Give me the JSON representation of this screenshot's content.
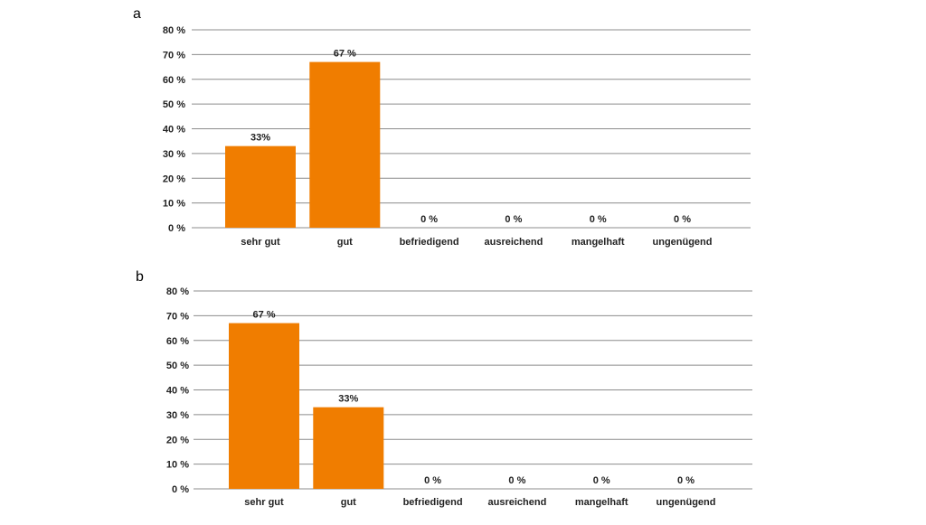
{
  "colors": {
    "bar": "#f07d00",
    "grid": "#8c8c8c",
    "text": "#222222"
  },
  "chart_data": [
    {
      "type": "bar",
      "panel": "a",
      "categories": [
        "sehr gut",
        "gut",
        "befriedigend",
        "ausreichend",
        "mangelhaft",
        "ungenügend"
      ],
      "values": [
        33,
        67,
        0,
        0,
        0,
        0
      ],
      "data_labels": [
        "33%",
        "67 %",
        "0 %",
        "0 %",
        "0 %",
        "0 %"
      ],
      "ylim": [
        0,
        80
      ],
      "yticks": [
        "0 %",
        "10 %",
        "20 %",
        "30 %",
        "40 %",
        "50 %",
        "60 %",
        "70 %",
        "80 %"
      ],
      "grid": true,
      "title": "",
      "xlabel": "",
      "ylabel": ""
    },
    {
      "type": "bar",
      "panel": "b",
      "categories": [
        "sehr gut",
        "gut",
        "befriedigend",
        "ausreichend",
        "mangelhaft",
        "ungenügend"
      ],
      "values": [
        67,
        33,
        0,
        0,
        0,
        0
      ],
      "data_labels": [
        "67 %",
        "33%",
        "0 %",
        "0 %",
        "0 %",
        "0 %"
      ],
      "ylim": [
        0,
        80
      ],
      "yticks": [
        "0 %",
        "10 %",
        "20 %",
        "30 %",
        "40 %",
        "50 %",
        "60 %",
        "70 %",
        "80 %"
      ],
      "grid": true,
      "title": "",
      "xlabel": "",
      "ylabel": ""
    }
  ]
}
